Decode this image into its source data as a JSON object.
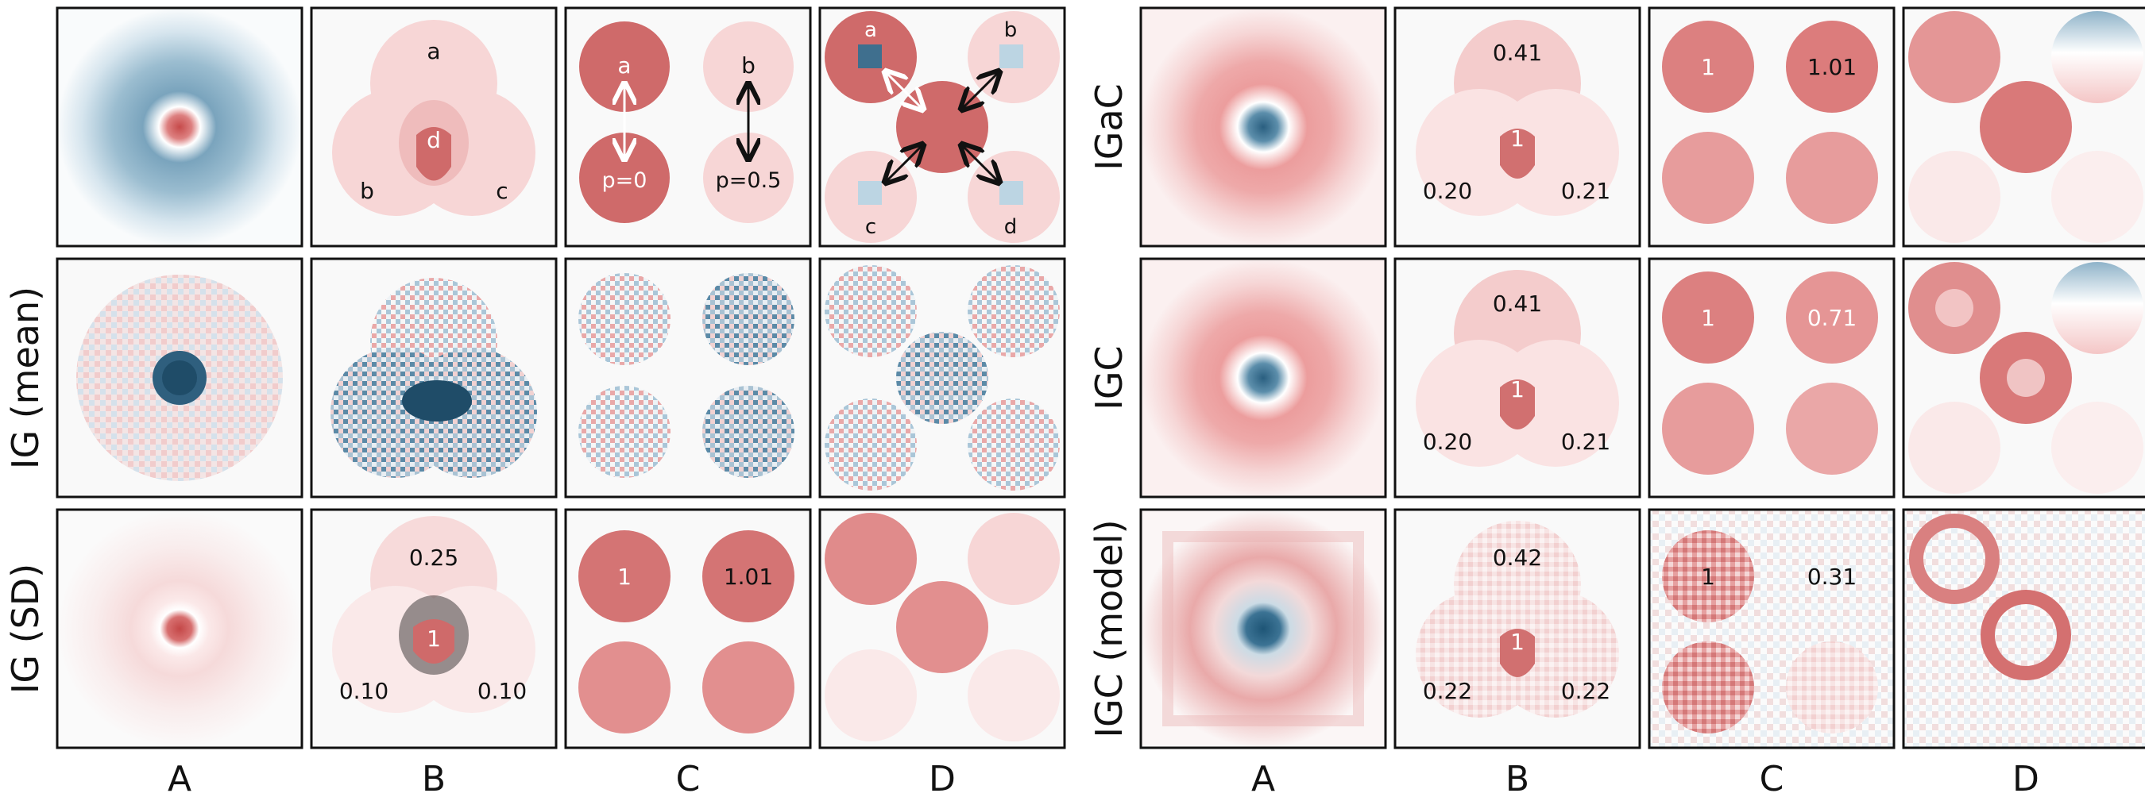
{
  "colors": {
    "pale": "#f9e6e6",
    "light": "#f7d6d6",
    "light2": "#f2c3c3",
    "medium": "#e59595",
    "mid2": "#e7a3a3",
    "dark": "#cf6a6a",
    "core": "#c84b4b",
    "blue": "#3f7a99",
    "lightblue": "#bcd5e3",
    "bg": "#f9f9f9",
    "frame": "#111111"
  },
  "left": {
    "row_labels": [
      "",
      "IG (mean)",
      "IG (SD)"
    ],
    "col_labels": [
      "A",
      "B",
      "C",
      "D"
    ],
    "b_letters": [
      "a",
      "b",
      "c",
      "d"
    ],
    "c_letters": [
      "a",
      "b"
    ],
    "c_probs": [
      "p=0",
      "p=0.5"
    ],
    "d_letters": [
      "a",
      "b",
      "c",
      "d"
    ],
    "sd_b_values": [
      "0.25",
      "1",
      "0.10",
      "0.10"
    ],
    "sd_c_values": [
      "1",
      "1.01"
    ]
  },
  "right": {
    "row_labels": [
      "IGaC",
      "IGC",
      "IGC (model)"
    ],
    "col_labels": [
      "A",
      "B",
      "C",
      "D"
    ],
    "igac_b_values": [
      "0.41",
      "1",
      "0.20",
      "0.21"
    ],
    "igac_c_values": [
      "1",
      "1.01"
    ],
    "igc_b_values": [
      "0.41",
      "1",
      "0.20",
      "0.21"
    ],
    "igc_c_values": [
      "1",
      "0.71"
    ],
    "model_b_values": [
      "0.42",
      "1",
      "0.22",
      "0.22"
    ],
    "model_c_values": [
      "1",
      "0.31"
    ]
  }
}
